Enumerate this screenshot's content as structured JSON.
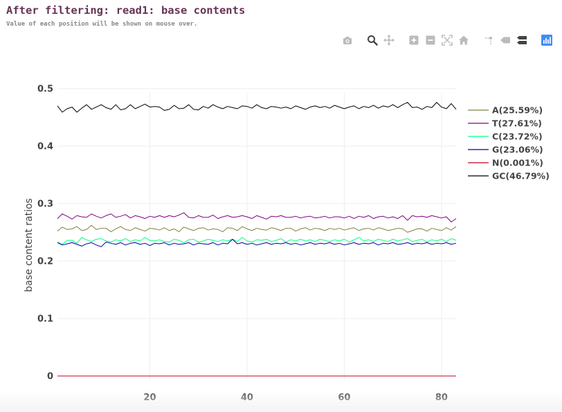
{
  "header": {
    "title": "After filtering: read1: base contents",
    "subtitle": "Value of each position will be shown on mouse over."
  },
  "modebar": {
    "groups": [
      [
        "camera-icon"
      ],
      [
        "zoom-icon",
        "pan-icon"
      ],
      [
        "zoom-in-icon",
        "zoom-out-icon",
        "autoscale-icon",
        "home-icon"
      ],
      [
        "spike-lines-icon",
        "hover-closest-icon",
        "hover-compare-icon"
      ],
      [
        "plotly-logo-icon"
      ]
    ],
    "active": [
      "zoom-icon",
      "hover-compare-icon"
    ],
    "icon_color": "#bbbbbb",
    "active_color": "#444444",
    "logo_color": "#3f8ef6"
  },
  "chart_data": {
    "type": "line",
    "ylabel": "base content ratios",
    "xlabel": "",
    "xlim": [
      1,
      83
    ],
    "ylim": [
      0,
      0.5
    ],
    "x_ticks": [
      20,
      40,
      60,
      80
    ],
    "y_ticks": [
      0,
      0.1,
      0.2,
      0.3,
      0.4,
      0.5
    ],
    "y_tick_labels": [
      "0",
      "0.1",
      "0.2",
      "0.3",
      "0.4",
      "0.5"
    ],
    "grid": true,
    "legend_position": "right",
    "x": [
      1,
      2,
      3,
      4,
      5,
      6,
      7,
      8,
      9,
      10,
      11,
      12,
      13,
      14,
      15,
      16,
      17,
      18,
      19,
      20,
      21,
      22,
      23,
      24,
      25,
      26,
      27,
      28,
      29,
      30,
      31,
      32,
      33,
      34,
      35,
      36,
      37,
      38,
      39,
      40,
      41,
      42,
      43,
      44,
      45,
      46,
      47,
      48,
      49,
      50,
      51,
      52,
      53,
      54,
      55,
      56,
      57,
      58,
      59,
      60,
      61,
      62,
      63,
      64,
      65,
      66,
      67,
      68,
      69,
      70,
      71,
      72,
      73,
      74,
      75,
      76,
      77,
      78,
      79,
      80,
      81,
      82,
      83
    ],
    "series": [
      {
        "name": "A(25.59%)",
        "color": "#808040",
        "values": [
          0.252,
          0.259,
          0.255,
          0.256,
          0.26,
          0.253,
          0.255,
          0.262,
          0.255,
          0.257,
          0.257,
          0.251,
          0.256,
          0.26,
          0.255,
          0.253,
          0.258,
          0.255,
          0.252,
          0.257,
          0.256,
          0.254,
          0.258,
          0.253,
          0.256,
          0.251,
          0.259,
          0.256,
          0.253,
          0.257,
          0.258,
          0.254,
          0.256,
          0.255,
          0.251,
          0.258,
          0.257,
          0.253,
          0.26,
          0.256,
          0.253,
          0.257,
          0.255,
          0.254,
          0.258,
          0.256,
          0.253,
          0.257,
          0.257,
          0.252,
          0.256,
          0.258,
          0.254,
          0.257,
          0.256,
          0.253,
          0.257,
          0.255,
          0.257,
          0.254,
          0.256,
          0.258,
          0.253,
          0.256,
          0.257,
          0.254,
          0.258,
          0.256,
          0.253,
          0.255,
          0.257,
          0.256,
          0.25,
          0.253,
          0.256,
          0.256,
          0.252,
          0.257,
          0.255,
          0.253,
          0.258,
          0.254,
          0.26
        ]
      },
      {
        "name": "T(27.61%)",
        "color": "#800080",
        "values": [
          0.274,
          0.282,
          0.278,
          0.273,
          0.279,
          0.277,
          0.276,
          0.282,
          0.278,
          0.275,
          0.279,
          0.282,
          0.276,
          0.278,
          0.281,
          0.275,
          0.279,
          0.277,
          0.274,
          0.278,
          0.276,
          0.279,
          0.276,
          0.279,
          0.277,
          0.28,
          0.284,
          0.276,
          0.275,
          0.279,
          0.276,
          0.276,
          0.28,
          0.274,
          0.277,
          0.279,
          0.276,
          0.277,
          0.279,
          0.277,
          0.274,
          0.279,
          0.276,
          0.273,
          0.278,
          0.277,
          0.279,
          0.276,
          0.276,
          0.278,
          0.275,
          0.277,
          0.278,
          0.275,
          0.276,
          0.278,
          0.275,
          0.277,
          0.277,
          0.275,
          0.278,
          0.274,
          0.278,
          0.276,
          0.279,
          0.274,
          0.277,
          0.278,
          0.275,
          0.277,
          0.274,
          0.279,
          0.271,
          0.279,
          0.277,
          0.278,
          0.276,
          0.279,
          0.277,
          0.275,
          0.277,
          0.268,
          0.274
        ]
      },
      {
        "name": "C(23.72%)",
        "color": "#00ff80",
        "values": [
          0.233,
          0.229,
          0.236,
          0.236,
          0.231,
          0.241,
          0.237,
          0.234,
          0.238,
          0.239,
          0.235,
          0.233,
          0.237,
          0.235,
          0.239,
          0.234,
          0.237,
          0.235,
          0.241,
          0.236,
          0.235,
          0.237,
          0.234,
          0.233,
          0.238,
          0.236,
          0.232,
          0.237,
          0.238,
          0.233,
          0.235,
          0.238,
          0.236,
          0.234,
          0.237,
          0.235,
          0.238,
          0.234,
          0.241,
          0.235,
          0.233,
          0.237,
          0.236,
          0.238,
          0.234,
          0.236,
          0.239,
          0.233,
          0.237,
          0.235,
          0.238,
          0.235,
          0.237,
          0.234,
          0.238,
          0.236,
          0.234,
          0.237,
          0.235,
          0.238,
          0.233,
          0.237,
          0.241,
          0.235,
          0.237,
          0.234,
          0.238,
          0.236,
          0.234,
          0.238,
          0.235,
          0.237,
          0.239,
          0.234,
          0.236,
          0.238,
          0.233,
          0.237,
          0.235,
          0.238,
          0.234,
          0.239,
          0.236
        ]
      },
      {
        "name": "G(23.06%)",
        "color": "#0000a0",
        "values": [
          0.232,
          0.228,
          0.23,
          0.232,
          0.229,
          0.226,
          0.23,
          0.232,
          0.228,
          0.225,
          0.233,
          0.231,
          0.229,
          0.232,
          0.228,
          0.231,
          0.232,
          0.229,
          0.231,
          0.227,
          0.231,
          0.23,
          0.232,
          0.228,
          0.231,
          0.229,
          0.23,
          0.232,
          0.228,
          0.231,
          0.23,
          0.229,
          0.232,
          0.228,
          0.231,
          0.23,
          0.238,
          0.23,
          0.232,
          0.229,
          0.231,
          0.228,
          0.23,
          0.232,
          0.229,
          0.231,
          0.23,
          0.232,
          0.229,
          0.231,
          0.228,
          0.23,
          0.232,
          0.229,
          0.231,
          0.23,
          0.232,
          0.229,
          0.231,
          0.228,
          0.23,
          0.232,
          0.229,
          0.231,
          0.23,
          0.232,
          0.228,
          0.231,
          0.23,
          0.232,
          0.229,
          0.23,
          0.232,
          0.229,
          0.231,
          0.23,
          0.232,
          0.229,
          0.231,
          0.23,
          0.232,
          0.229,
          0.231
        ]
      },
      {
        "name": "N(0.001%)",
        "color": "#c00020",
        "values": [
          0,
          0,
          0,
          0,
          0,
          0,
          0,
          0,
          0,
          0,
          0,
          0,
          0,
          0,
          0,
          0,
          0,
          0,
          0,
          0,
          0,
          0,
          0,
          0,
          0,
          0,
          0,
          0,
          0,
          0,
          0,
          0,
          0,
          0,
          0,
          0,
          0,
          0,
          0,
          0,
          0,
          0,
          0,
          0,
          0,
          0,
          0,
          0,
          0,
          0,
          0,
          0,
          0,
          0,
          0,
          0,
          0,
          0,
          0,
          0,
          0,
          0,
          0,
          0,
          0,
          0,
          0,
          0,
          0,
          0,
          0,
          0,
          0,
          0,
          0,
          0,
          0,
          0,
          0,
          0,
          0,
          0,
          0
        ]
      },
      {
        "name": "GC(46.79%)",
        "color": "#000000",
        "values": [
          0.47,
          0.459,
          0.465,
          0.468,
          0.459,
          0.466,
          0.472,
          0.464,
          0.468,
          0.472,
          0.467,
          0.464,
          0.472,
          0.463,
          0.465,
          0.472,
          0.465,
          0.469,
          0.473,
          0.468,
          0.469,
          0.468,
          0.462,
          0.464,
          0.471,
          0.465,
          0.466,
          0.472,
          0.464,
          0.463,
          0.469,
          0.466,
          0.472,
          0.468,
          0.465,
          0.469,
          0.467,
          0.465,
          0.47,
          0.469,
          0.466,
          0.472,
          0.467,
          0.465,
          0.469,
          0.468,
          0.466,
          0.468,
          0.465,
          0.47,
          0.467,
          0.464,
          0.468,
          0.47,
          0.467,
          0.469,
          0.466,
          0.471,
          0.468,
          0.465,
          0.468,
          0.47,
          0.465,
          0.469,
          0.467,
          0.471,
          0.466,
          0.47,
          0.468,
          0.472,
          0.467,
          0.472,
          0.476,
          0.467,
          0.468,
          0.464,
          0.469,
          0.467,
          0.476,
          0.468,
          0.465,
          0.474,
          0.464
        ]
      }
    ]
  }
}
